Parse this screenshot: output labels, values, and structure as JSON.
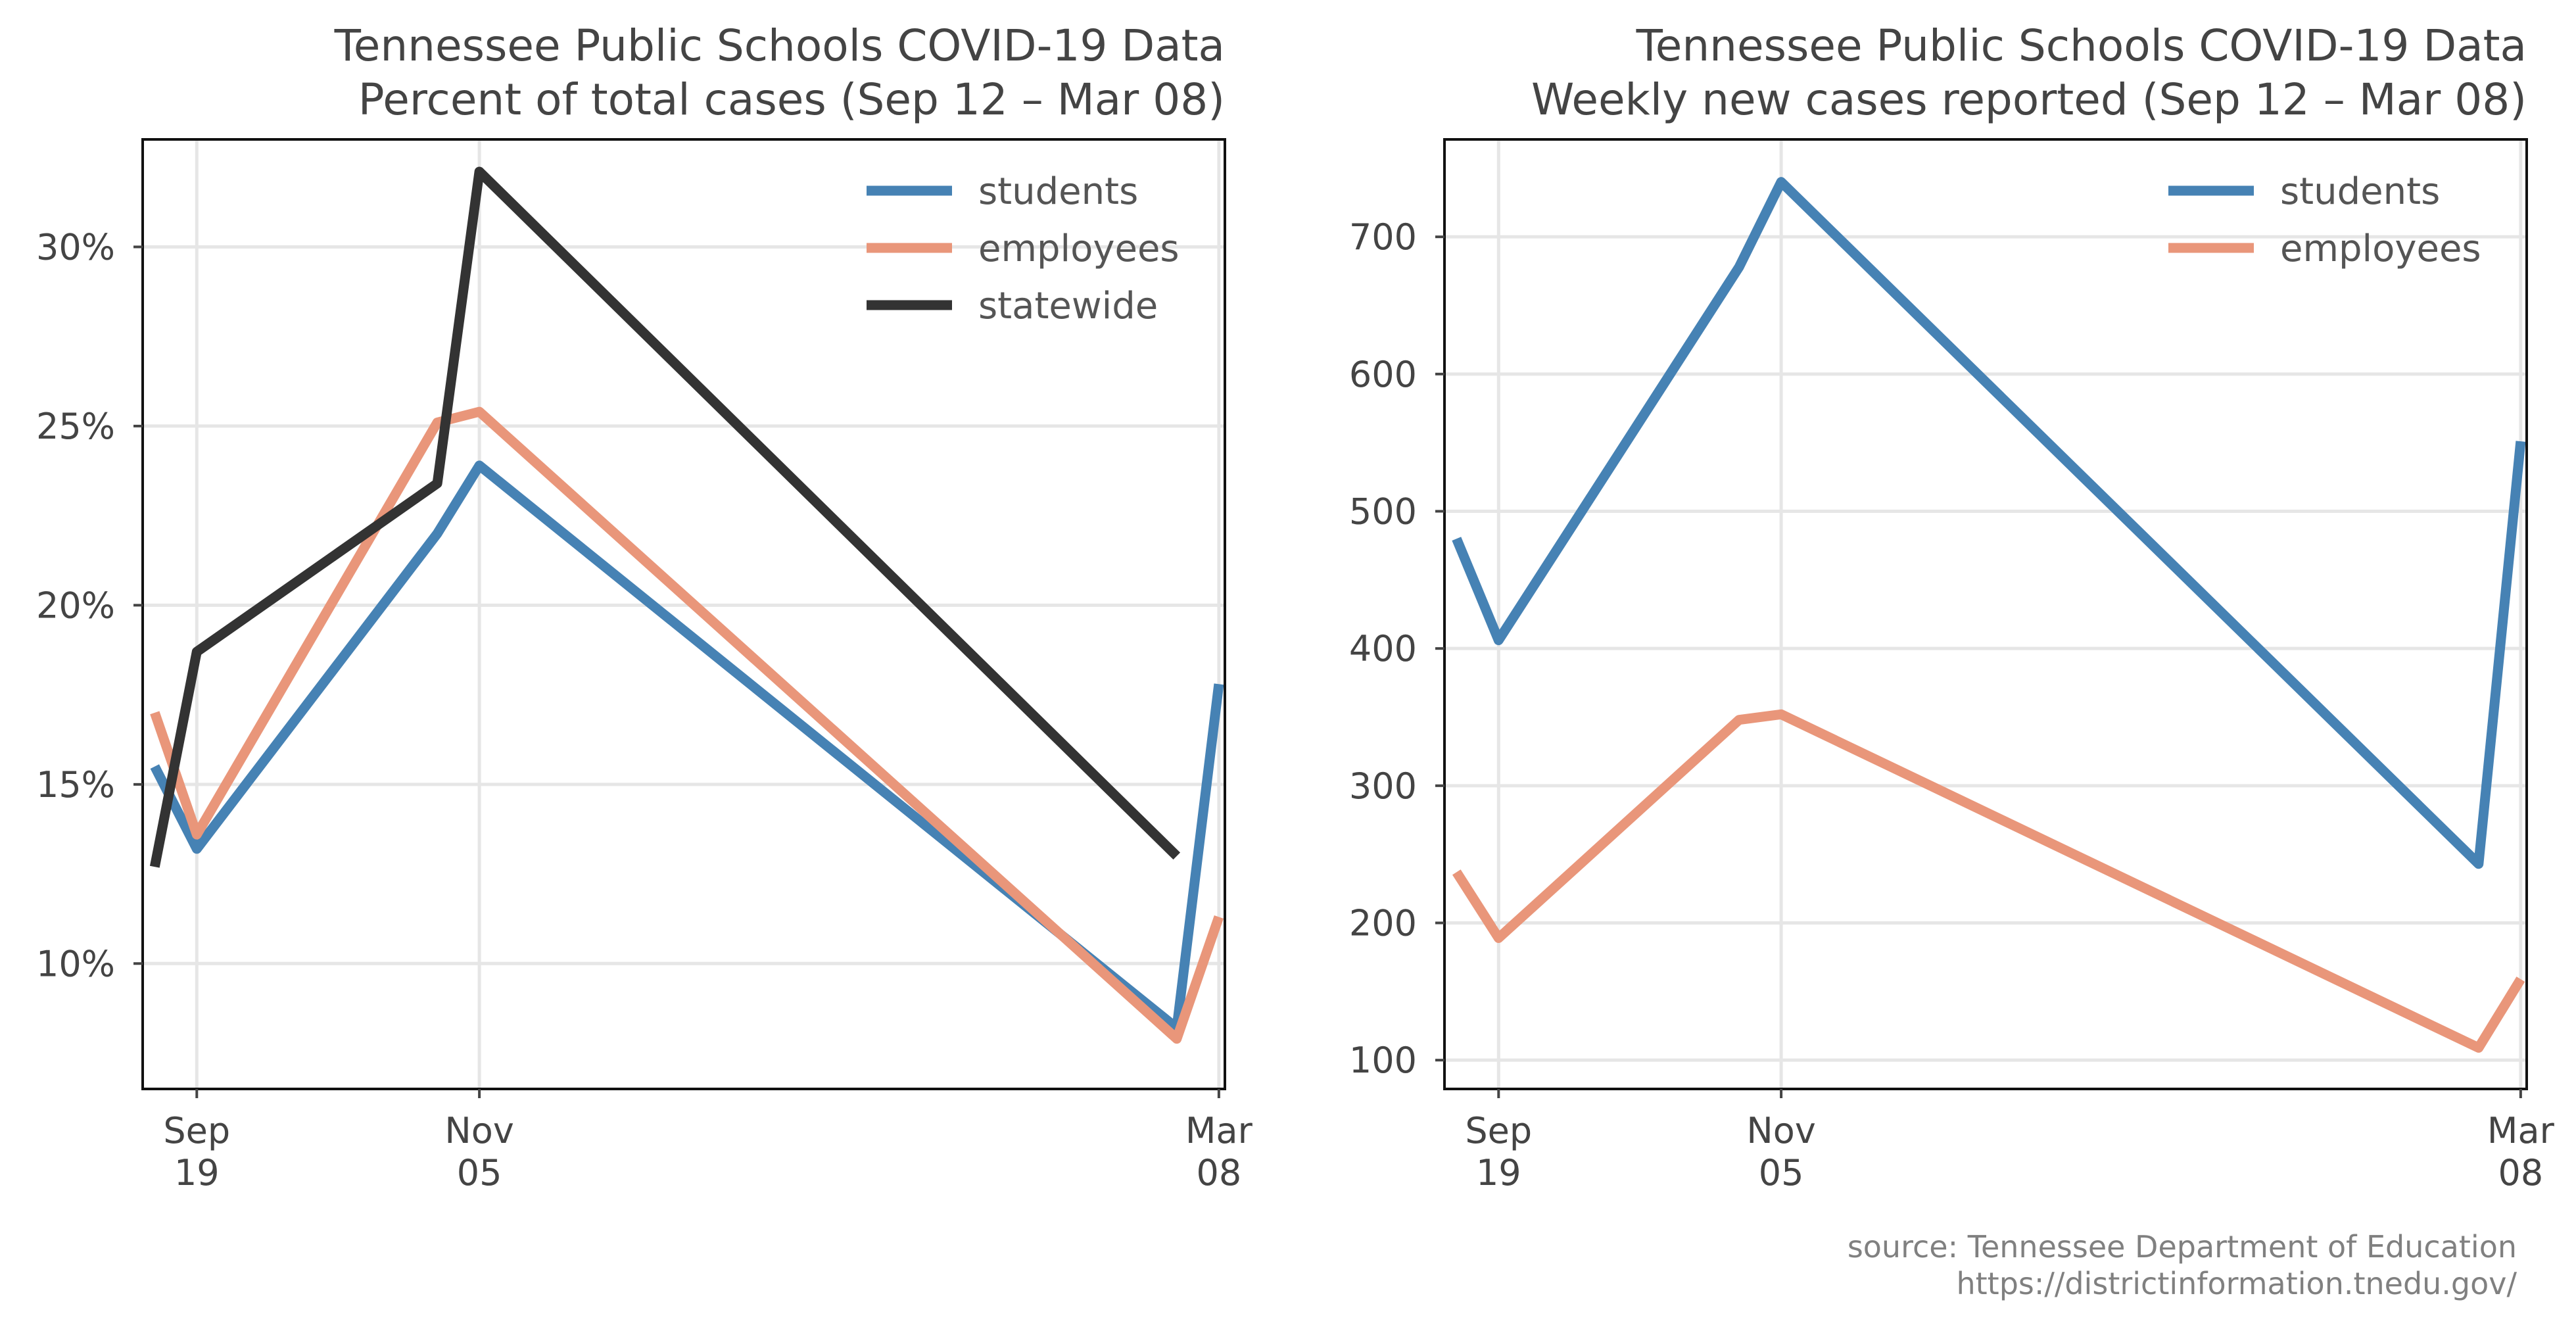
{
  "colors": {
    "students": "#4682b4",
    "employees": "#e9967a",
    "statewide": "#333333"
  },
  "footer": {
    "source_line1": "source: Tennessee Department of Education",
    "source_line2": "https://districtinformation.tnedu.gov/"
  },
  "chart_data": [
    {
      "type": "line",
      "title": "Tennessee Public Schools COVID-19 Data",
      "subtitle": "Percent of total cases (Sep 12 – Mar 08)",
      "xlabel": "",
      "ylabel": "",
      "x_ticks": [
        {
          "date": "2020-09-19",
          "top": "Sep",
          "bottom": "19"
        },
        {
          "date": "2020-11-05",
          "top": "Nov",
          "bottom": "05"
        },
        {
          "date": "2021-03-08",
          "top": "Mar",
          "bottom": "08"
        }
      ],
      "xlim": [
        "2020-09-10",
        "2021-03-09"
      ],
      "ylim": [
        6.5,
        33.0
      ],
      "y_ticks": [
        10,
        15,
        20,
        25,
        30
      ],
      "y_tick_labels": [
        "10%",
        "15%",
        "20%",
        "25%",
        "30%"
      ],
      "grid": true,
      "legend": "top-right",
      "series": [
        {
          "name": "students",
          "color_key": "students",
          "x": [
            "2020-09-12",
            "2020-09-19",
            "2020-10-29",
            "2020-11-05",
            "2021-03-01",
            "2021-03-08"
          ],
          "values": [
            15.5,
            13.2,
            22.0,
            23.9,
            8.2,
            17.8
          ]
        },
        {
          "name": "employees",
          "color_key": "employees",
          "x": [
            "2020-09-12",
            "2020-09-19",
            "2020-10-29",
            "2020-11-05",
            "2021-03-01",
            "2021-03-08"
          ],
          "values": [
            17.0,
            13.6,
            25.1,
            25.4,
            7.9,
            11.3
          ]
        },
        {
          "name": "statewide",
          "color_key": "statewide",
          "x": [
            "2020-09-12",
            "2020-09-19",
            "2020-10-29",
            "2020-11-05",
            "2021-03-01"
          ],
          "values": [
            12.7,
            18.7,
            23.4,
            32.1,
            13.0
          ]
        }
      ]
    },
    {
      "type": "line",
      "title": "Tennessee Public Schools COVID-19 Data",
      "subtitle": "Weekly new cases reported (Sep 12 – Mar 08)",
      "xlabel": "",
      "ylabel": "",
      "x_ticks": [
        {
          "date": "2020-09-19",
          "top": "Sep",
          "bottom": "19"
        },
        {
          "date": "2020-11-05",
          "top": "Nov",
          "bottom": "05"
        },
        {
          "date": "2021-03-08",
          "top": "Mar",
          "bottom": "08"
        }
      ],
      "xlim": [
        "2020-09-10",
        "2021-03-09"
      ],
      "ylim": [
        79,
        771
      ],
      "y_ticks": [
        100,
        200,
        300,
        400,
        500,
        600,
        700
      ],
      "y_tick_labels": [
        "100",
        "200",
        "300",
        "400",
        "500",
        "600",
        "700"
      ],
      "grid": true,
      "legend": "top-right",
      "series": [
        {
          "name": "students",
          "color_key": "students",
          "x": [
            "2020-09-12",
            "2020-09-19",
            "2020-10-29",
            "2020-11-05",
            "2021-03-01",
            "2021-03-08"
          ],
          "values": [
            480,
            406,
            678,
            740,
            243,
            551
          ]
        },
        {
          "name": "employees",
          "color_key": "employees",
          "x": [
            "2020-09-12",
            "2020-09-19",
            "2020-10-29",
            "2020-11-05",
            "2021-03-01",
            "2021-03-08"
          ],
          "values": [
            237,
            189,
            348,
            352,
            109,
            159
          ]
        }
      ]
    }
  ]
}
